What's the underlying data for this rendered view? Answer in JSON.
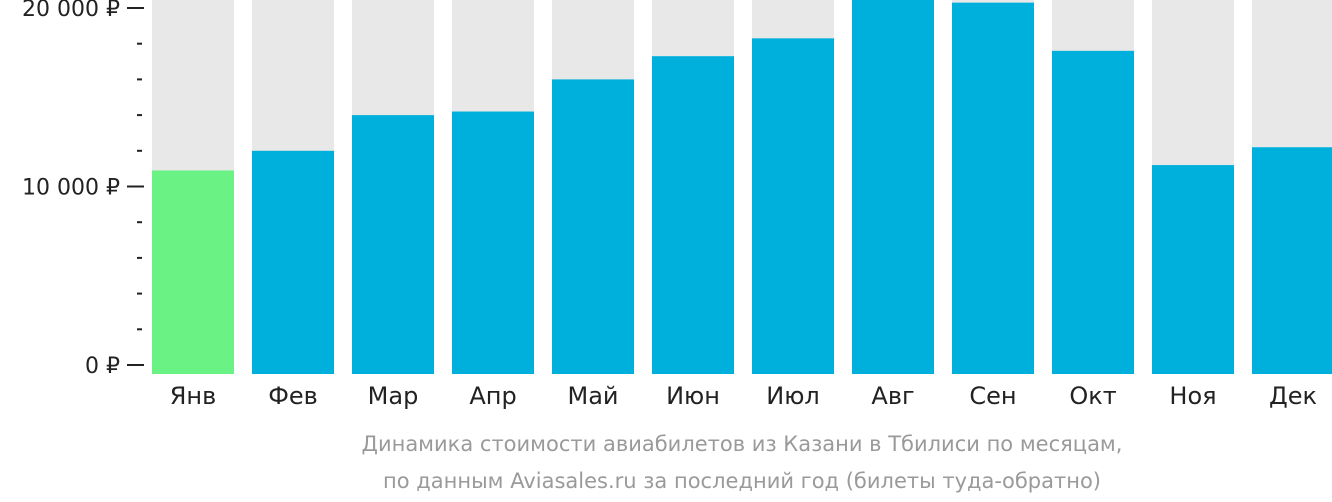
{
  "chart_data": {
    "type": "bar",
    "title": "Динамика стоимости авиабилетов из Казани в Тбилиси по месяцам,",
    "subtitle": "по данным Aviasales.ru за последний год (билеты туда-обратно)",
    "xlabel": "",
    "ylabel": "",
    "categories": [
      "Янв",
      "Фев",
      "Мар",
      "Апр",
      "Май",
      "Июн",
      "Июл",
      "Авг",
      "Сен",
      "Окт",
      "Ноя",
      "Дек"
    ],
    "values": [
      10900,
      12000,
      14000,
      14200,
      16000,
      17300,
      18300,
      20700,
      20300,
      17600,
      11200,
      12200
    ],
    "ylim": [
      0,
      20000
    ],
    "yticks": [
      0,
      10000,
      20000
    ],
    "ytick_labels": [
      "0 ₽",
      "10 000 ₽",
      "20 000 ₽"
    ],
    "minor_tick_step": 2000,
    "highlight_index": 0,
    "grid": false,
    "colors": {
      "bar": "#00b0dc",
      "highlight": "#6af285",
      "track": "#e8e8e8",
      "axis_text": "#222222",
      "caption_text": "#9a9a9a",
      "tick": "#222222"
    }
  }
}
